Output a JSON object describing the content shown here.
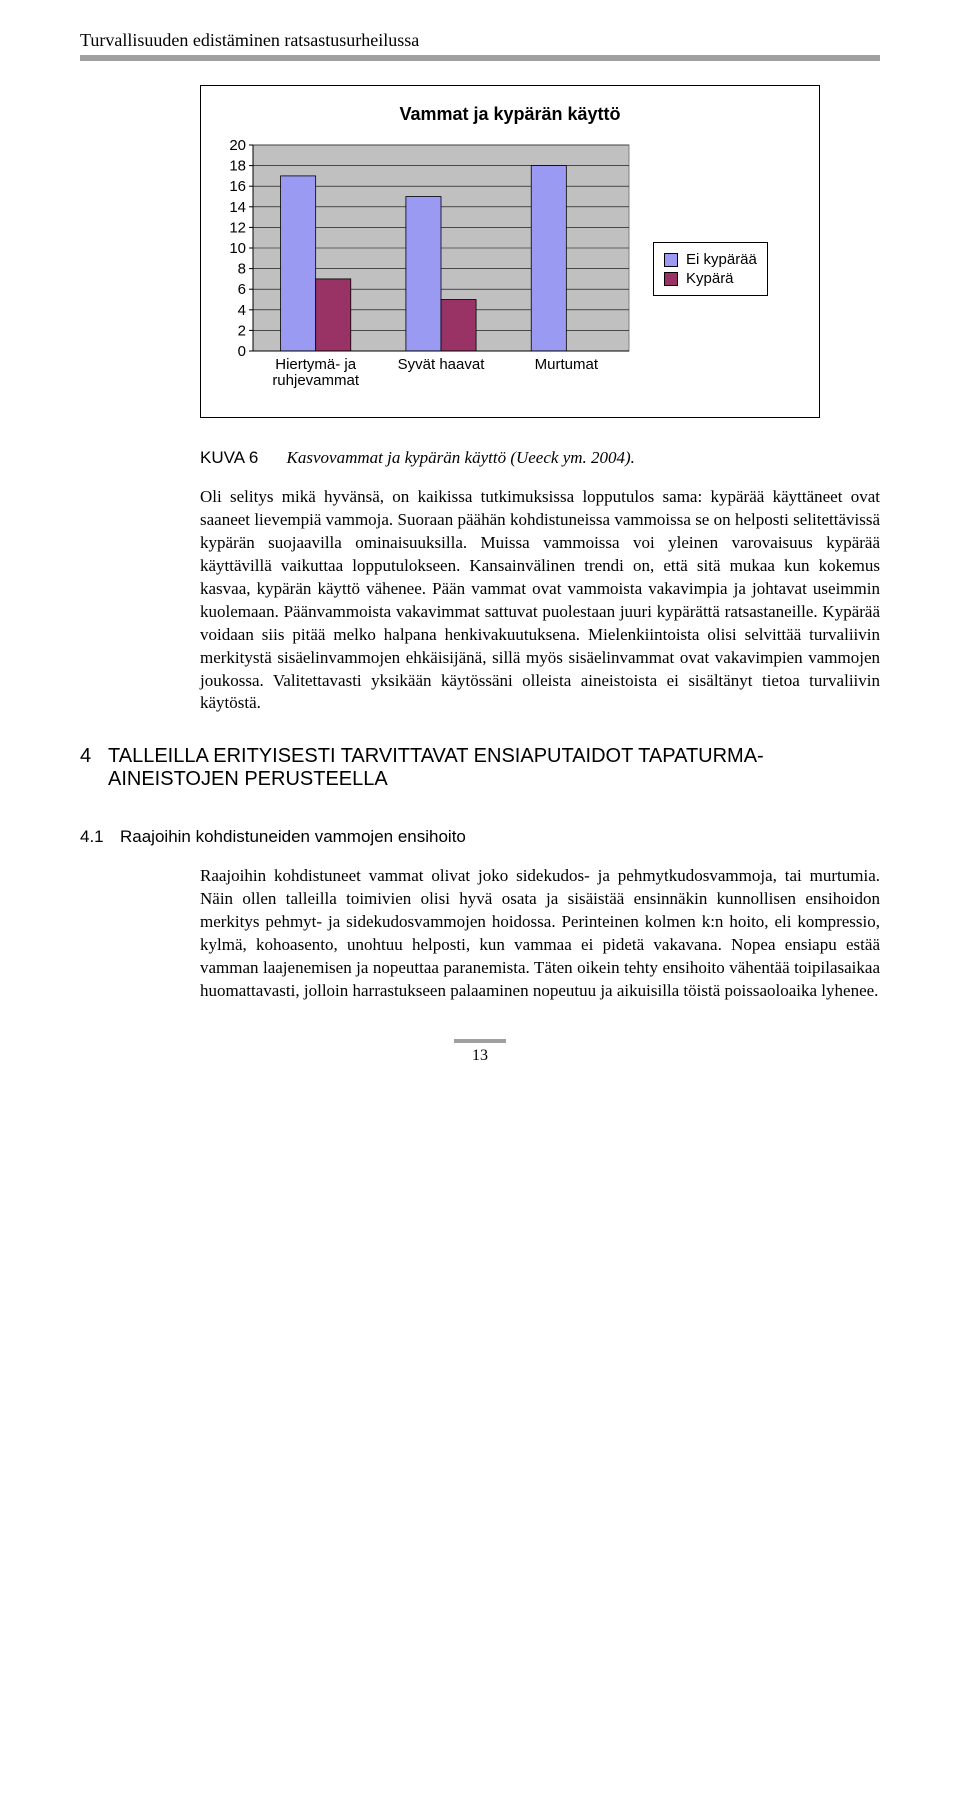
{
  "header": {
    "title": "Turvallisuuden edistäminen ratsastusurheilussa"
  },
  "chart": {
    "type": "bar",
    "title": "Vammat ja kypärän käyttö",
    "title_fontsize": 18,
    "categories": [
      "Hiertymä- ja ruhjevammat",
      "Syvät haavat",
      "Murtumat"
    ],
    "series": [
      {
        "name": "Ei kypärää",
        "color": "#9a9af2",
        "values": [
          17,
          15,
          18
        ]
      },
      {
        "name": "Kypärä",
        "color": "#993366",
        "values": [
          7,
          5,
          0
        ]
      }
    ],
    "ylim": [
      0,
      20
    ],
    "ytick_step": 2,
    "yticks": [
      0,
      2,
      4,
      6,
      8,
      10,
      12,
      14,
      16,
      18,
      20
    ],
    "label_font": "Arial",
    "label_fontsize": 15,
    "plot_border_color": "#808080",
    "grid_color": "#000000",
    "background_color": "#c0c0c0",
    "legend": {
      "border": "#000000",
      "bg": "#ffffff"
    },
    "axis_line_color": "#000000"
  },
  "caption": {
    "label": "KUVA 6",
    "text": "Kasvovammat ja kypärän käyttö (Ueeck ym. 2004)."
  },
  "paragraph1": "Oli selitys mikä hyvänsä, on kaikissa tutkimuksissa lopputulos sama: kypärää käyttäneet ovat saaneet lievempiä vammoja. Suoraan päähän kohdistuneissa vammoissa se on helposti selitettävissä kypärän suojaavilla ominaisuuksilla. Muissa vammoissa voi yleinen varovaisuus kypärää käyttävillä vaikuttaa lopputulokseen. Kansainvälinen trendi on, että sitä mukaa kun kokemus kasvaa, kypärän käyttö vähenee. Pään vammat ovat vammoista vakavimpia ja johtavat useimmin kuolemaan. Päänvammoista vakavimmat sattuvat puolestaan juuri kypärättä ratsastaneille. Kypärää voidaan siis pitää melko halpana henkivakuutuksena. Mielenkiintoista olisi selvittää turvaliivin merkitystä sisäelinvammojen ehkäisijänä, sillä myös sisäelinvammat ovat vakavimpien vammojen joukossa. Valitettavasti yksikään käytössäni olleista aineistoista ei sisältänyt tietoa turvaliivin käytöstä.",
  "section4": {
    "number": "4",
    "title": "TALLEILLA ERITYISESTI TARVITTAVAT ENSIAPUTAIDOT TAPATURMA-AINEISTOJEN PERUSTEELLA"
  },
  "subsection41": {
    "number": "4.1",
    "title": "Raajoihin kohdistuneiden vammojen ensihoito"
  },
  "paragraph2": "Raajoihin kohdistuneet vammat olivat joko sidekudos- ja pehmytkudosvammoja, tai murtumia. Näin ollen talleilla toimivien olisi hyvä osata ja sisäistää ensinnäkin kunnollisen ensihoidon merkitys pehmyt- ja sidekudosvammojen hoidossa. Perinteinen kolmen k:n hoito, eli kompressio, kylmä, kohoasento, unohtuu helposti, kun vammaa ei pidetä vakavana. Nopea ensiapu estää vamman laajenemisen ja nopeuttaa paranemista. Täten oikein tehty ensihoito vähentää toipilasaikaa huomattavasti, jolloin harrastukseen palaaminen nopeutuu ja aikuisilla töistä poissaoloaika lyhenee.",
  "page_number": "13"
}
